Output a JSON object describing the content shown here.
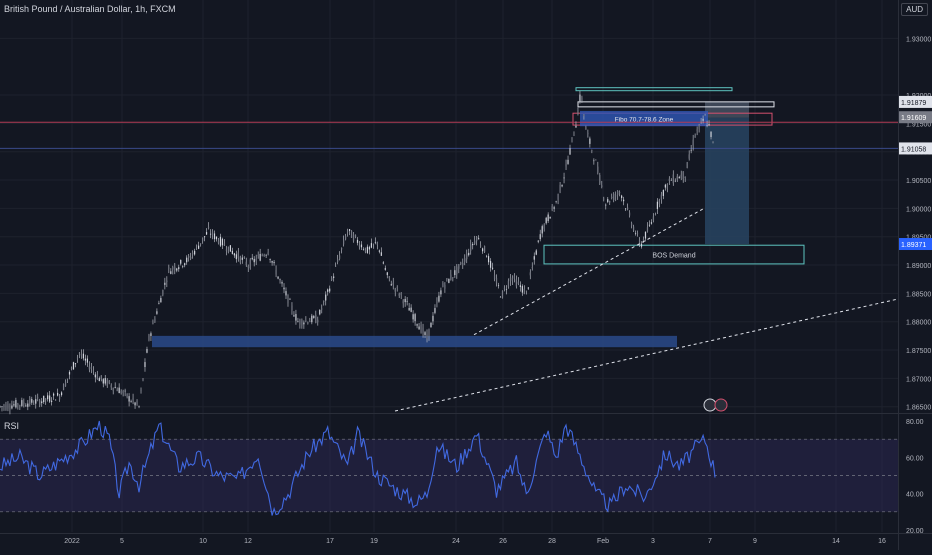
{
  "header": {
    "title": "British Pound / Australian Dollar, 1h, FXCM",
    "currency": "AUD",
    "rsi_label": "RSI"
  },
  "colors": {
    "background": "#131722",
    "grid": "#1e222d",
    "candles": "#b2b5be",
    "rsi_line": "#4169e1",
    "rsi_band": "#2a2650",
    "zone_blue": "#2a4a8a",
    "zone_teal": "#5ec4c0",
    "fib_zone": "#2f58b8",
    "target_zone": "#27415e",
    "red_line": "#b13a55",
    "blue_line": "#3a4a8a"
  },
  "price_axis": {
    "ticks": [
      "1.93000",
      "1.92000",
      "1.91500",
      "1.91000",
      "1.90500",
      "1.90000",
      "1.89500",
      "1.89000",
      "1.88500",
      "1.88000",
      "1.87500",
      "1.87000",
      "1.86500"
    ],
    "badges": [
      {
        "value": "1.91879",
        "style": "white"
      },
      {
        "value": "1.91609",
        "style": "grey"
      },
      {
        "value": "1.91058",
        "style": "white"
      },
      {
        "value": "1.89371",
        "style": "blue"
      }
    ]
  },
  "rsi_axis": {
    "ticks": [
      "80.00",
      "60.00",
      "40.00",
      "20.00"
    ]
  },
  "time_axis": {
    "labels": [
      "2022",
      "5",
      "10",
      "12",
      "17",
      "19",
      "24",
      "26",
      "28",
      "Feb",
      "3",
      "7",
      "9",
      "14",
      "16"
    ]
  },
  "annotations": {
    "fib_zone": "Fibo 70.7-78.6 Zone",
    "demand_zone": "BOS Demand"
  },
  "chart_data": [
    {
      "type": "candlestick",
      "title": "British Pound / Australian Dollar, 1h, FXCM",
      "xlabel": "",
      "ylabel": "",
      "x_labels": [
        "2022",
        "5",
        "10",
        "12",
        "17",
        "19",
        "24",
        "26",
        "28",
        "Feb",
        "3",
        "7",
        "9",
        "14",
        "16"
      ],
      "ylim": [
        1.8645,
        1.9345
      ],
      "close_path": [
        {
          "x": 0,
          "y": 1.865
        },
        {
          "x": 4,
          "y": 1.866
        },
        {
          "x": 6,
          "y": 1.867
        },
        {
          "x": 8,
          "y": 1.8745
        },
        {
          "x": 10,
          "y": 1.87
        },
        {
          "x": 12,
          "y": 1.868
        },
        {
          "x": 14,
          "y": 1.865
        },
        {
          "x": 15,
          "y": 1.877
        },
        {
          "x": 17,
          "y": 1.889
        },
        {
          "x": 19,
          "y": 1.891
        },
        {
          "x": 21,
          "y": 1.896
        },
        {
          "x": 23,
          "y": 1.893
        },
        {
          "x": 25,
          "y": 1.89
        },
        {
          "x": 27,
          "y": 1.8925
        },
        {
          "x": 28,
          "y": 1.888
        },
        {
          "x": 30,
          "y": 1.88
        },
        {
          "x": 32,
          "y": 1.8805
        },
        {
          "x": 33,
          "y": 1.885
        },
        {
          "x": 35,
          "y": 1.896
        },
        {
          "x": 37,
          "y": 1.8925
        },
        {
          "x": 38,
          "y": 1.894
        },
        {
          "x": 39,
          "y": 1.888
        },
        {
          "x": 41,
          "y": 1.883
        },
        {
          "x": 43,
          "y": 1.877
        },
        {
          "x": 44.5,
          "y": 1.886
        },
        {
          "x": 46.5,
          "y": 1.89
        },
        {
          "x": 48,
          "y": 1.895
        },
        {
          "x": 49,
          "y": 1.892
        },
        {
          "x": 50.5,
          "y": 1.8845
        },
        {
          "x": 51.5,
          "y": 1.888
        },
        {
          "x": 53,
          "y": 1.885
        },
        {
          "x": 54.5,
          "y": 1.896
        },
        {
          "x": 56,
          "y": 1.901
        },
        {
          "x": 57,
          "y": 1.907
        },
        {
          "x": 58,
          "y": 1.915
        },
        {
          "x": 58.5,
          "y": 1.9205
        },
        {
          "x": 59,
          "y": 1.914
        },
        {
          "x": 60,
          "y": 1.908
        },
        {
          "x": 61,
          "y": 1.901
        },
        {
          "x": 62.5,
          "y": 1.903
        },
        {
          "x": 63.5,
          "y": 1.898
        },
        {
          "x": 64.5,
          "y": 1.8935
        },
        {
          "x": 65.5,
          "y": 1.897
        },
        {
          "x": 66.5,
          "y": 1.902
        },
        {
          "x": 67.5,
          "y": 1.905
        },
        {
          "x": 69,
          "y": 1.906
        },
        {
          "x": 70,
          "y": 1.913
        },
        {
          "x": 71,
          "y": 1.916
        },
        {
          "x": 71.5,
          "y": 1.914
        },
        {
          "x": 72,
          "y": 1.9095
        }
      ]
    },
    {
      "type": "line",
      "title": "RSI",
      "ylim": [
        20,
        80
      ],
      "reference_lines": [
        70,
        50,
        30
      ],
      "series": [
        {
          "points": [
            {
              "x": 0,
              "y": 55
            },
            {
              "x": 2,
              "y": 60
            },
            {
              "x": 4,
              "y": 50
            },
            {
              "x": 6,
              "y": 58
            },
            {
              "x": 8,
              "y": 66
            },
            {
              "x": 10,
              "y": 78
            },
            {
              "x": 11,
              "y": 70
            },
            {
              "x": 12,
              "y": 40
            },
            {
              "x": 13,
              "y": 57
            },
            {
              "x": 14,
              "y": 45
            },
            {
              "x": 16,
              "y": 77
            },
            {
              "x": 18,
              "y": 55
            },
            {
              "x": 20,
              "y": 60
            },
            {
              "x": 22,
              "y": 50
            },
            {
              "x": 24,
              "y": 48
            },
            {
              "x": 26,
              "y": 62
            },
            {
              "x": 27.5,
              "y": 30
            },
            {
              "x": 29,
              "y": 40
            },
            {
              "x": 31,
              "y": 62
            },
            {
              "x": 33,
              "y": 74
            },
            {
              "x": 35,
              "y": 55
            },
            {
              "x": 36,
              "y": 73
            },
            {
              "x": 38,
              "y": 50
            },
            {
              "x": 40,
              "y": 42
            },
            {
              "x": 42,
              "y": 35
            },
            {
              "x": 43,
              "y": 40
            },
            {
              "x": 44,
              "y": 67
            },
            {
              "x": 46,
              "y": 55
            },
            {
              "x": 48,
              "y": 73
            },
            {
              "x": 50,
              "y": 42
            },
            {
              "x": 52,
              "y": 57
            },
            {
              "x": 53,
              "y": 40
            },
            {
              "x": 55,
              "y": 75
            },
            {
              "x": 56,
              "y": 60
            },
            {
              "x": 57,
              "y": 78
            },
            {
              "x": 58.5,
              "y": 60
            },
            {
              "x": 60,
              "y": 40
            },
            {
              "x": 61.5,
              "y": 33
            },
            {
              "x": 63,
              "y": 45
            },
            {
              "x": 65,
              "y": 38
            },
            {
              "x": 67,
              "y": 62
            },
            {
              "x": 68.5,
              "y": 55
            },
            {
              "x": 70,
              "y": 65
            },
            {
              "x": 71,
              "y": 70
            },
            {
              "x": 72,
              "y": 52
            }
          ]
        }
      ]
    }
  ]
}
